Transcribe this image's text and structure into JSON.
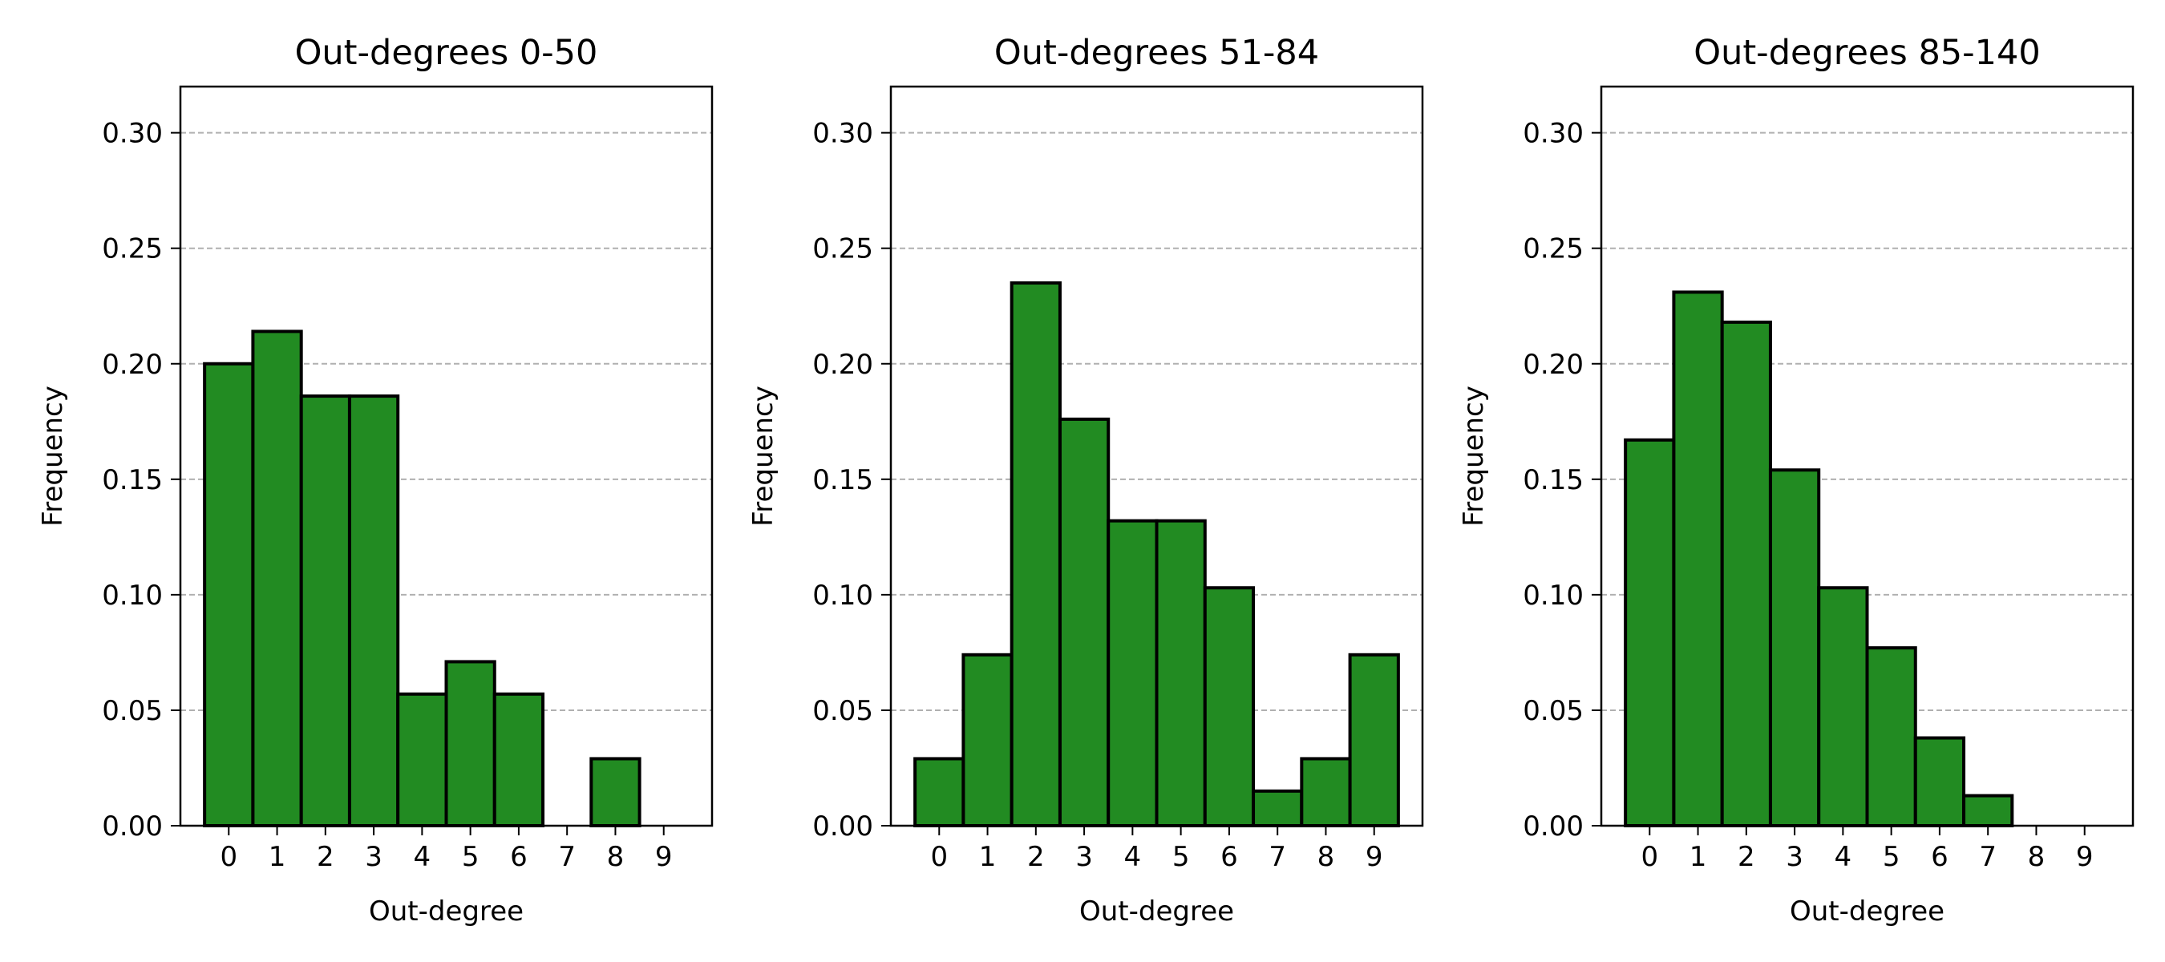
{
  "chart_data": [
    {
      "type": "bar",
      "title": "Out-degrees 0-50",
      "xlabel": "Out-degree",
      "ylabel": "Frequency",
      "categories": [
        "0",
        "1",
        "2",
        "3",
        "4",
        "5",
        "6",
        "7",
        "8",
        "9"
      ],
      "values": [
        0.2,
        0.214,
        0.186,
        0.186,
        0.057,
        0.071,
        0.057,
        0.0,
        0.029,
        0.0
      ],
      "ylim": [
        0,
        0.32
      ],
      "yticks": [
        "0.00",
        "0.05",
        "0.10",
        "0.15",
        "0.20",
        "0.25",
        "0.30"
      ],
      "grid": "y-dashed",
      "color": "#228B22"
    },
    {
      "type": "bar",
      "title": "Out-degrees 51-84",
      "xlabel": "Out-degree",
      "ylabel": "Frequency",
      "categories": [
        "0",
        "1",
        "2",
        "3",
        "4",
        "5",
        "6",
        "7",
        "8",
        "9"
      ],
      "values": [
        0.029,
        0.074,
        0.235,
        0.176,
        0.132,
        0.132,
        0.103,
        0.015,
        0.029,
        0.074
      ],
      "ylim": [
        0,
        0.32
      ],
      "yticks": [
        "0.00",
        "0.05",
        "0.10",
        "0.15",
        "0.20",
        "0.25",
        "0.30"
      ],
      "grid": "y-dashed",
      "color": "#228B22"
    },
    {
      "type": "bar",
      "title": "Out-degrees 85-140",
      "xlabel": "Out-degree",
      "ylabel": "Frequency",
      "categories": [
        "0",
        "1",
        "2",
        "3",
        "4",
        "5",
        "6",
        "7",
        "8",
        "9"
      ],
      "values": [
        0.167,
        0.231,
        0.218,
        0.154,
        0.103,
        0.077,
        0.038,
        0.013,
        0.0,
        0.0
      ],
      "ylim": [
        0,
        0.32
      ],
      "yticks": [
        "0.00",
        "0.05",
        "0.10",
        "0.15",
        "0.20",
        "0.25",
        "0.30"
      ],
      "grid": "y-dashed",
      "color": "#228B22"
    }
  ]
}
